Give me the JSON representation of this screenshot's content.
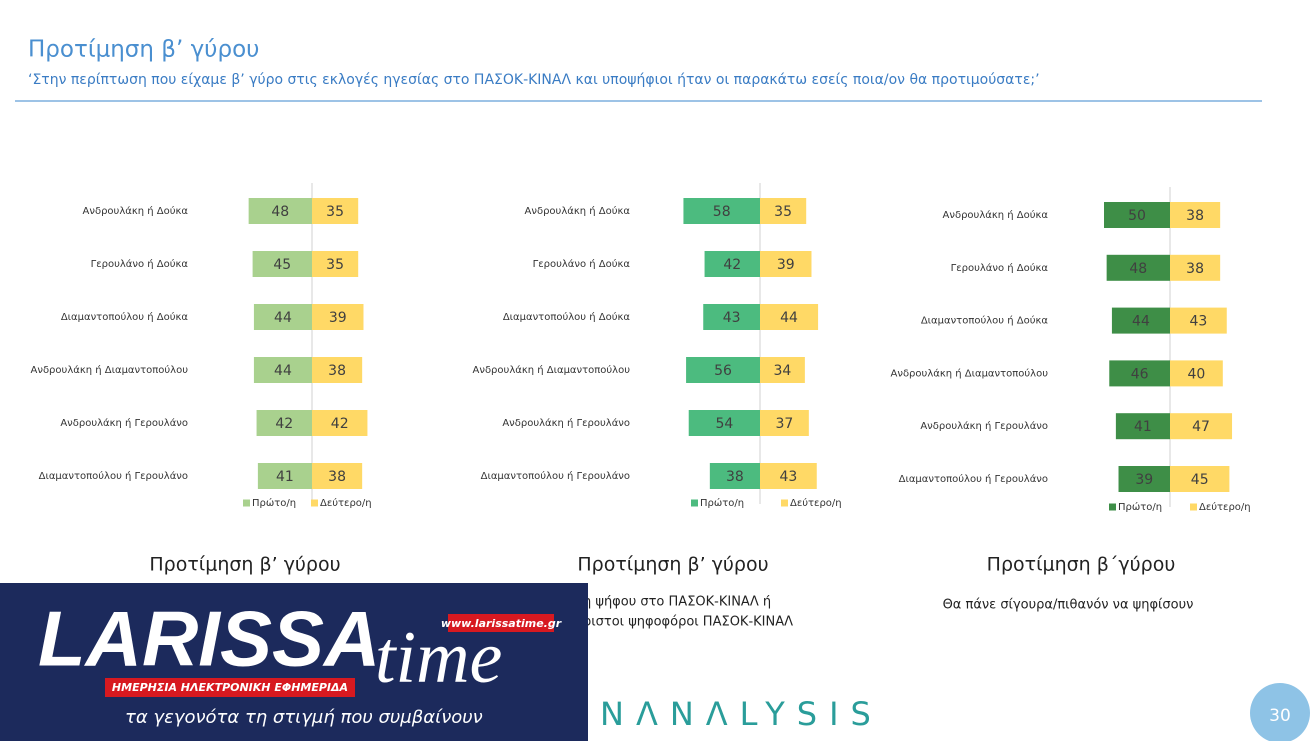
{
  "header": {
    "title": "Προτίμηση β’ γύρου",
    "subtitle": "‘Στην περίπτωση που είχαμε β’ γύρο στις εκλογές ηγεσίας στο ΠΑΣΟΚ-ΚΙΝΑΛ και υποψήφιοι ήταν οι παρακάτω εσείς ποια/ον θα προτιμούσατε;’"
  },
  "chart_data": [
    {
      "type": "bar",
      "categories": [
        "Ανδρουλάκη ή Δούκα",
        "Γερουλάνο ή Δούκα",
        "Διαμαντοπούλου ή Δούκα",
        "Ανδρουλάκη ή Διαμαντοπούλου",
        "Ανδρουλάκη ή Γερουλάνο",
        "Διαμαντοπούλου ή Γερουλάνο"
      ],
      "series": [
        {
          "name": "Πρώτο/η",
          "color": "#a9d18e",
          "values": [
            48,
            45,
            44,
            44,
            42,
            41
          ]
        },
        {
          "name": "Δεύτερο/η",
          "color": "#ffd966",
          "values": [
            35,
            35,
            39,
            38,
            42,
            38
          ]
        }
      ]
    },
    {
      "type": "bar",
      "categories": [
        "Ανδρουλάκη ή Δούκα",
        "Γερουλάνο ή Δούκα",
        "Διαμαντοπούλου ή Δούκα",
        "Ανδρουλάκη ή Διαμαντοπούλου",
        "Ανδρουλάκη ή Γερουλάνο",
        "Διαμαντοπούλου ή Γερουλάνο"
      ],
      "series": [
        {
          "name": "Πρώτο/η",
          "color": "#4cbb7f",
          "values": [
            58,
            42,
            43,
            56,
            54,
            38
          ]
        },
        {
          "name": "Δεύτερο/η",
          "color": "#ffd966",
          "values": [
            35,
            39,
            44,
            34,
            37,
            43
          ]
        }
      ]
    },
    {
      "type": "bar",
      "categories": [
        "Ανδρουλάκη ή Δούκα",
        "Γερουλάνο ή Δούκα",
        "Διαμαντοπούλου ή Δούκα",
        "Ανδρουλάκη ή Διαμαντοπούλου",
        "Ανδρουλάκη ή Γερουλάνο",
        "Διαμαντοπούλου ή Γερουλάνο"
      ],
      "series": [
        {
          "name": "Πρώτο/η",
          "color": "#3e8e47",
          "values": [
            50,
            48,
            44,
            46,
            41,
            39
          ]
        },
        {
          "name": "Δεύτερο/η",
          "color": "#ffd966",
          "values": [
            38,
            38,
            43,
            40,
            47,
            45
          ]
        }
      ]
    }
  ],
  "captions": [
    {
      "title": "Προτίμηση β’ γύρου"
    },
    {
      "title": "Προτίμηση β’ γύρου",
      "lines": [
        "η ψήφου στο ΠΑΣΟΚ-ΚΙΝΑΛ ή",
        "ριστοι ψηφοφόροι ΠΑΣΟΚ-ΚΙΝΑΛ"
      ]
    },
    {
      "title": "Προτίμηση β΄γύρου",
      "lines": [
        "Θα πάνε σίγουρα/πιθανόν να ψηφίσουν"
      ]
    }
  ],
  "logo": {
    "name": "LARISSA",
    "suffix": "time",
    "url": "www.larissatime.gr",
    "banner": "ΗΜΕΡΗΣΙΑ ΗΛΕΚΤΡΟΝΙΚΗ ΕΦΗΜΕΡΙΔΑ",
    "slogan": "τα γεγονότα τη στιγμή που συμβαίνουν"
  },
  "footer": {
    "brand": "NΛNΛLYSIS",
    "page": "30"
  }
}
